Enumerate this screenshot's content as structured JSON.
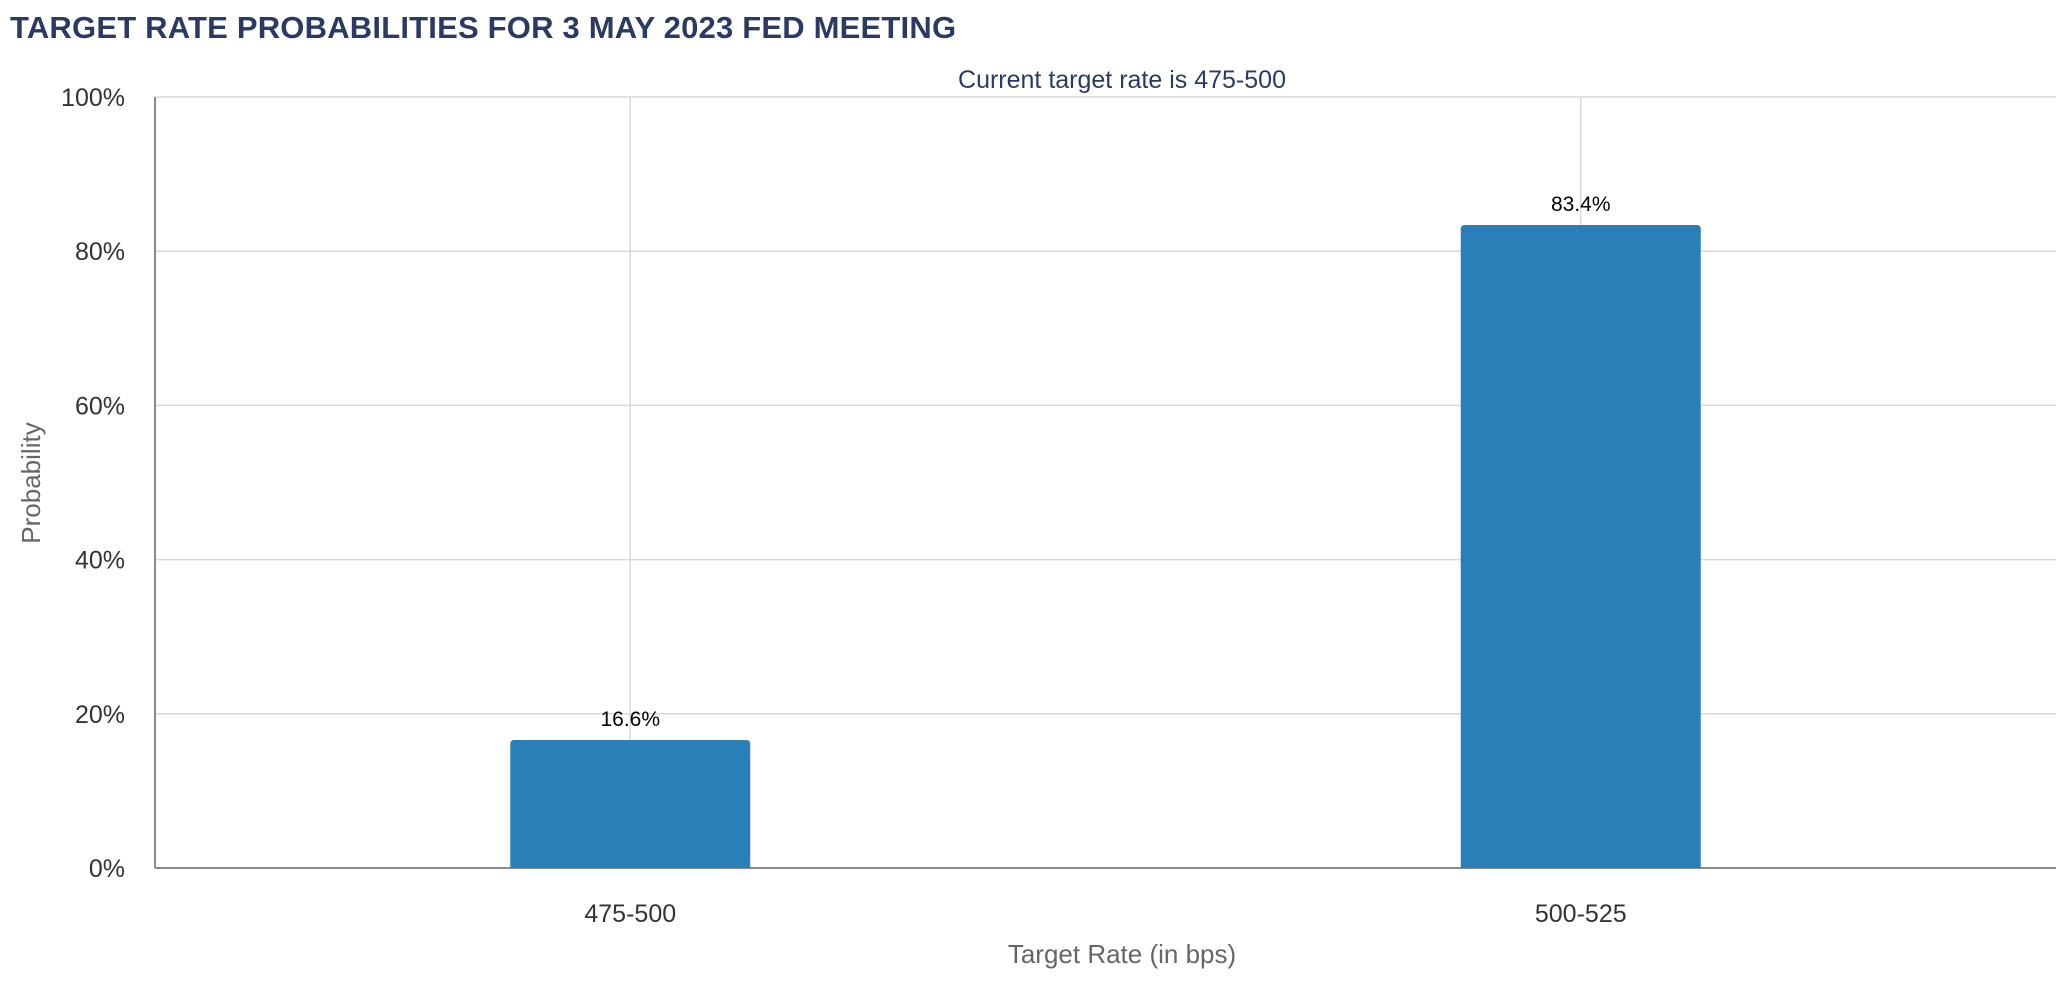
{
  "page": {
    "title": "TARGET RATE PROBABILITIES FOR 3 MAY 2023 FED MEETING"
  },
  "chart_data": {
    "type": "bar",
    "title": "TARGET RATE PROBABILITIES FOR 3 MAY 2023 FED MEETING",
    "subtitle": "Current target rate is 475-500",
    "xlabel": "Target Rate (in bps)",
    "ylabel": "Probability",
    "categories": [
      "475-500",
      "500-525"
    ],
    "values": [
      16.6,
      83.4
    ],
    "data_labels": [
      "16.6%",
      "83.4%"
    ],
    "ylim": [
      0,
      100
    ],
    "y_ticks": [
      0,
      20,
      40,
      60,
      80,
      100
    ],
    "y_tick_labels": [
      "0%",
      "20%",
      "40%",
      "60%",
      "80%",
      "100%"
    ],
    "grid": true,
    "legend": "none",
    "bar_color": "#2980b9"
  }
}
